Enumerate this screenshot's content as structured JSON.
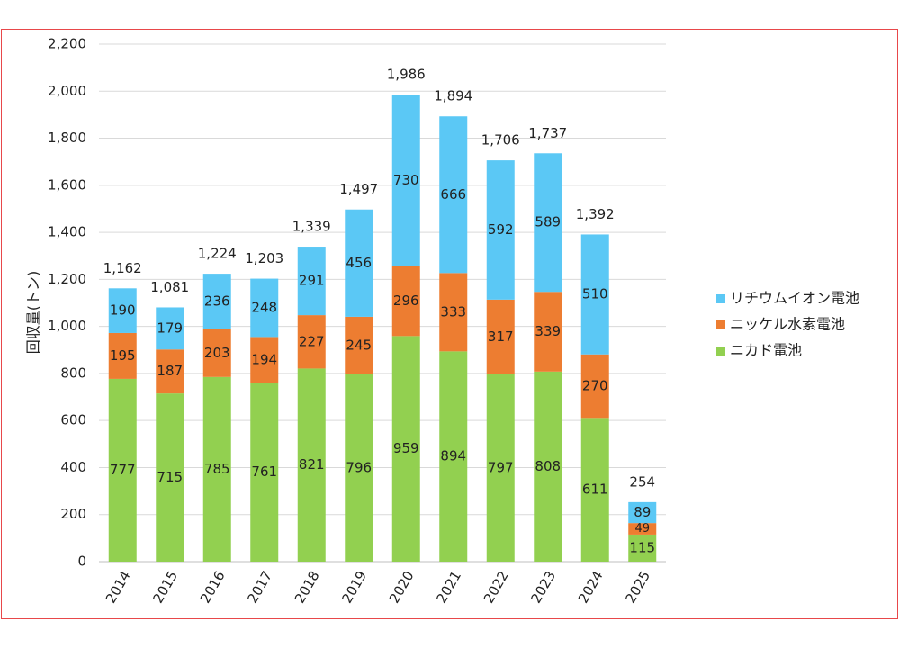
{
  "chart_data": {
    "type": "bar",
    "stacked": true,
    "title": "",
    "xlabel": "",
    "ylabel": "回収量(トン)",
    "ylim": [
      0,
      2200
    ],
    "yticks": [
      0,
      200,
      400,
      600,
      800,
      1000,
      1200,
      1400,
      1600,
      1800,
      2000,
      2200
    ],
    "ytick_labels": [
      "0",
      "200",
      "400",
      "600",
      "800",
      "1,000",
      "1,200",
      "1,400",
      "1,600",
      "1,800",
      "2,000",
      "2,200"
    ],
    "grid": true,
    "legend_position": "right",
    "categories": [
      "2014",
      "2015",
      "2016",
      "2017",
      "2018",
      "2019",
      "2020",
      "2021",
      "2022",
      "2023",
      "2024",
      "2025"
    ],
    "series": [
      {
        "name": "ニカド電池",
        "color": "#92d050",
        "values": [
          777,
          715,
          785,
          761,
          821,
          796,
          959,
          894,
          797,
          808,
          611,
          115
        ]
      },
      {
        "name": "ニッケル水素電池",
        "color": "#ed7d31",
        "values": [
          195,
          187,
          203,
          194,
          227,
          245,
          296,
          333,
          317,
          339,
          270,
          49
        ]
      },
      {
        "name": "リチウムイオン電池",
        "color": "#5bc8f5",
        "values": [
          190,
          179,
          236,
          248,
          291,
          456,
          730,
          666,
          592,
          589,
          510,
          89
        ]
      }
    ],
    "totals": [
      "1,162",
      "1,081",
      "1,224",
      "1,203",
      "1,339",
      "1,497",
      "1,986",
      "1,894",
      "1,706",
      "1,737",
      "1,392",
      "254"
    ],
    "legend_order": [
      "リチウムイオン電池",
      "ニッケル水素電池",
      "ニカド電池"
    ]
  }
}
